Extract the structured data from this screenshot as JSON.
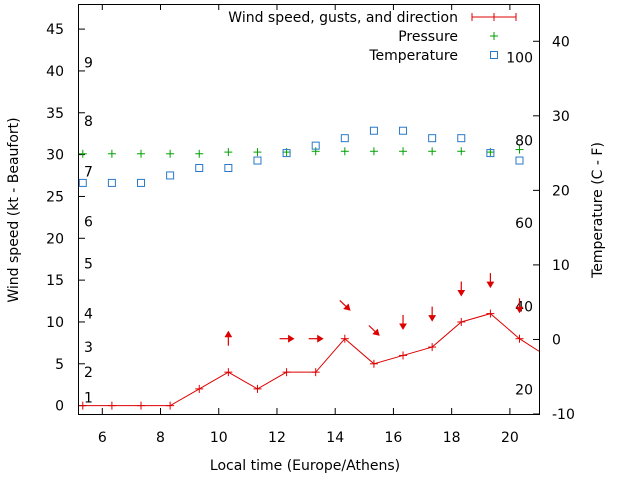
{
  "chart_data": {
    "type": "line",
    "title": "",
    "xlabel": "Local time (Europe/Athens)",
    "ylabel": "Wind speed (kt - Beaufort)",
    "y2label": "Temperature (C - F)",
    "xlim": [
      5.2,
      21.0
    ],
    "ylim": [
      -1,
      48
    ],
    "y2lim": [
      -10,
      45
    ],
    "x_ticks": [
      "6",
      "8",
      "10",
      "12",
      "14",
      "16",
      "18",
      "20"
    ],
    "x_tick_values": [
      6,
      8,
      10,
      12,
      14,
      16,
      18,
      20
    ],
    "y_ticks": [
      "0",
      "5",
      "10",
      "15",
      "20",
      "25",
      "30",
      "35",
      "40",
      "45"
    ],
    "y_tick_values": [
      0,
      5,
      10,
      15,
      20,
      25,
      30,
      35,
      40,
      45
    ],
    "y2_ticks": [
      "-10",
      "0",
      "10",
      "20",
      "30",
      "40"
    ],
    "y2_tick_values": [
      -10,
      0,
      10,
      20,
      30,
      40
    ],
    "beaufort_labels": [
      {
        "label": "1",
        "kt": 1
      },
      {
        "label": "2",
        "kt": 4
      },
      {
        "label": "3",
        "kt": 7
      },
      {
        "label": "4",
        "kt": 11
      },
      {
        "label": "5",
        "kt": 17
      },
      {
        "label": "6",
        "kt": 22
      },
      {
        "label": "7",
        "kt": 28
      },
      {
        "label": "8",
        "kt": 34
      },
      {
        "label": "9",
        "kt": 41
      }
    ],
    "fahrenheit_labels": [
      {
        "label": "20",
        "celsius": -6.7
      },
      {
        "label": "40",
        "celsius": 4.4
      },
      {
        "label": "60",
        "celsius": 15.6
      },
      {
        "label": "80",
        "celsius": 26.7
      },
      {
        "label": "100",
        "celsius": 37.8
      }
    ],
    "legend_position": "top-right",
    "series": [
      {
        "name": "Wind speed, gusts, and direction",
        "axis": "y",
        "style": "line-plus",
        "color": "#dd0000",
        "x": [
          5.33,
          6.33,
          7.33,
          8.33,
          9.33,
          10.33,
          11.33,
          12.33,
          13.33,
          14.33,
          15.33,
          16.33,
          17.33,
          18.33,
          19.33,
          20.33,
          21.0
        ],
        "values": [
          0,
          0,
          0,
          0,
          2,
          4,
          2,
          4,
          4,
          8,
          5,
          6,
          7,
          10,
          11,
          8,
          6.5
        ]
      },
      {
        "name": "Pressure",
        "axis": "y",
        "style": "plus",
        "color": "#00a000",
        "x": [
          5.33,
          6.33,
          7.33,
          8.33,
          9.33,
          10.33,
          11.33,
          12.33,
          13.33,
          14.33,
          15.33,
          16.33,
          17.33,
          18.33,
          19.33,
          20.33
        ],
        "values": [
          30.1,
          30.1,
          30.1,
          30.1,
          30.1,
          30.3,
          30.3,
          30.3,
          30.4,
          30.4,
          30.4,
          30.4,
          30.4,
          30.4,
          30.3,
          30.6
        ]
      },
      {
        "name": "Temperature",
        "axis": "y2",
        "style": "square",
        "color": "#2a78c8",
        "x": [
          5.33,
          6.33,
          7.33,
          8.33,
          9.33,
          10.33,
          11.33,
          12.33,
          13.33,
          14.33,
          15.33,
          16.33,
          17.33,
          18.33,
          19.33,
          20.33
        ],
        "values": [
          21,
          21,
          21,
          22,
          23,
          23,
          24,
          25,
          26,
          27,
          28,
          28,
          27,
          27,
          25,
          24
        ]
      }
    ],
    "wind_arrows": [
      {
        "x": 10.33,
        "kt": 8,
        "direction": "up"
      },
      {
        "x": 12.33,
        "kt": 8,
        "direction": "right"
      },
      {
        "x": 13.33,
        "kt": 8,
        "direction": "right"
      },
      {
        "x": 14.33,
        "kt": 12,
        "direction": "down-right"
      },
      {
        "x": 15.33,
        "kt": 9,
        "direction": "down-right"
      },
      {
        "x": 16.33,
        "kt": 10,
        "direction": "down"
      },
      {
        "x": 17.33,
        "kt": 11,
        "direction": "down"
      },
      {
        "x": 18.33,
        "kt": 14,
        "direction": "down"
      },
      {
        "x": 19.33,
        "kt": 15,
        "direction": "down"
      },
      {
        "x": 20.33,
        "kt": 12,
        "direction": "down"
      }
    ]
  }
}
